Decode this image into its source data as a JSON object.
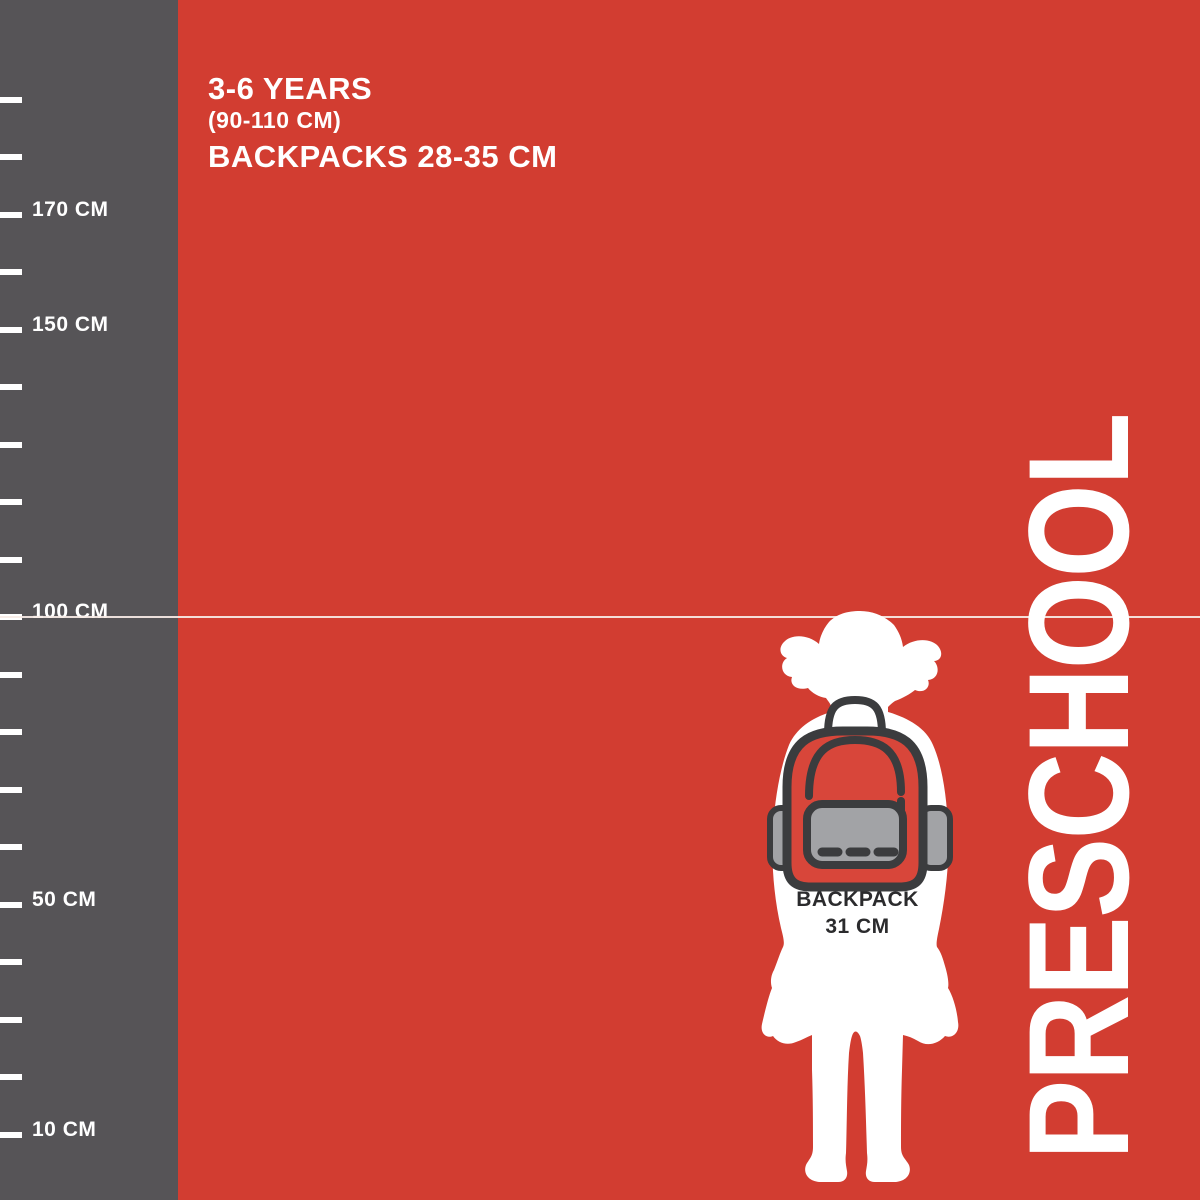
{
  "header": {
    "age_range": "3-6 YEARS",
    "height_range": "(90-110 CM)",
    "backpack_range": "BACKPACKS 28-35 CM"
  },
  "ruler": {
    "unit": "CM",
    "min_cm": 10,
    "max_cm": 190,
    "step_cm": 10,
    "ticks_cm": [
      190,
      180,
      170,
      160,
      150,
      140,
      130,
      120,
      110,
      100,
      90,
      80,
      70,
      60,
      50,
      40,
      30,
      20,
      10
    ],
    "labels": [
      {
        "cm": 170,
        "text": "170 CM"
      },
      {
        "cm": 150,
        "text": "150 CM"
      },
      {
        "cm": 100,
        "text": "100 CM"
      },
      {
        "cm": 50,
        "text": "50 CM"
      },
      {
        "cm": 10,
        "text": "10 CM"
      }
    ]
  },
  "reference_line": {
    "value_cm": 100
  },
  "figure": {
    "description": "white silhouette of preschool girl with pigtails wearing a backpack",
    "backpack_label": "BACKPACK",
    "backpack_size": "31 CM"
  },
  "category": {
    "label": "PRESCHOOL"
  },
  "colors": {
    "background": "#d23d31",
    "ruler": "#565457",
    "white": "#ffffff",
    "line": "#f7ebe6",
    "outline": "#3b3c3e",
    "backpack": "#d8463a",
    "pocket": "#a2a3a6",
    "label_text": "#2b2b2d"
  }
}
